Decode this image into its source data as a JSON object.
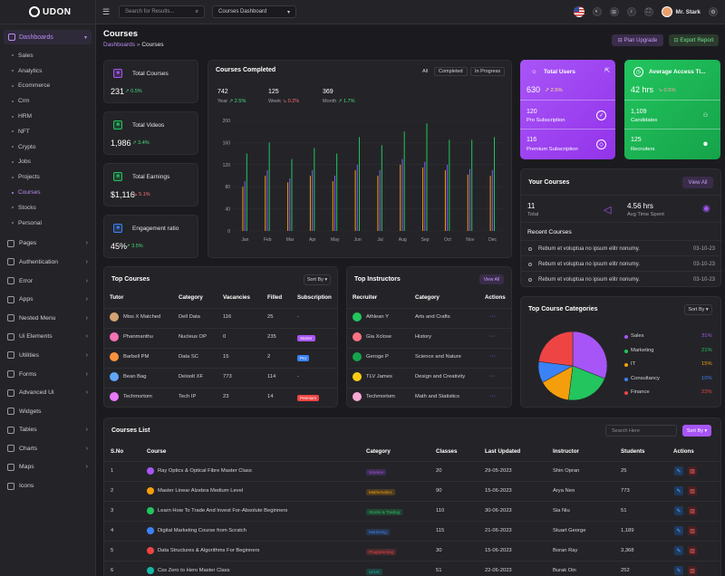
{
  "app": {
    "logo_text": "UDON"
  },
  "sidebar": {
    "dashboards_label": "Dashboards",
    "sub_items": [
      "Sales",
      "Analytics",
      "Ecommerce",
      "Crm",
      "HRM",
      "NFT",
      "Crypto",
      "Jobs",
      "Projects",
      "Courses",
      "Stocks",
      "Personal"
    ],
    "active_sub": "Courses",
    "items": [
      "Pages",
      "Authentication",
      "Error",
      "Apps",
      "Nested Menu",
      "Ui Elements",
      "Utilities",
      "Forms",
      "Advanced Ui",
      "Widgets",
      "Tables",
      "Charts",
      "Maps",
      "Icons"
    ]
  },
  "topbar": {
    "search_placeholder": "Search for Results...",
    "dashboard_select": "Courses Dashboard",
    "user_name": "Mr. Stark"
  },
  "page": {
    "title": "Courses",
    "crumb_root": "Dashboards",
    "crumb_sep": "»",
    "crumb_current": "Courses",
    "plan_upgrade": "Plan Upgrade",
    "export_report": "Export Report"
  },
  "stats": [
    {
      "label": "Total Courses",
      "value": "231",
      "change": "0.5%",
      "dir": "up",
      "color": "#a855f7",
      "icon": "book-icon"
    },
    {
      "label": "Total Videos",
      "value": "1,986",
      "change": "3.4%",
      "dir": "up",
      "color": "#22c55e",
      "icon": "video-icon"
    },
    {
      "label": "Total Earnings",
      "value": "$1,116",
      "change": "5.1%",
      "dir": "down",
      "color": "#22c55e",
      "icon": "dollar-icon"
    },
    {
      "label": "Engagement ratio",
      "value": "45%",
      "change": "3.5%",
      "dir": "up",
      "color": "#3b82f6",
      "icon": "diamond-icon"
    }
  ],
  "courses_completed": {
    "title": "Courses Completed",
    "tabs": [
      "All",
      "Completed",
      "In Progress"
    ],
    "stats": [
      {
        "value": "742",
        "period": "Year",
        "change": "2.5%",
        "dir": "up"
      },
      {
        "value": "125",
        "period": "Week",
        "change": "0.2%",
        "dir": "down"
      },
      {
        "value": "369",
        "period": "Month",
        "change": "1.7%",
        "dir": "up"
      }
    ]
  },
  "chart_data": {
    "type": "bar",
    "categories": [
      "Jan",
      "Feb",
      "Mar",
      "Apr",
      "May",
      "Jun",
      "Jul",
      "Aug",
      "Sep",
      "Oct",
      "Nov",
      "Dec"
    ],
    "yticks": [
      0,
      40,
      80,
      120,
      160,
      200
    ],
    "ylim": [
      0,
      200
    ],
    "series": [
      {
        "color": "#f59e0b",
        "values": [
          80,
          100,
          88,
          100,
          90,
          110,
          100,
          120,
          115,
          110,
          102,
          100
        ]
      },
      {
        "color": "#8b5cf6",
        "values": [
          90,
          110,
          95,
          110,
          100,
          120,
          110,
          130,
          125,
          120,
          112,
          110
        ]
      },
      {
        "color": "#22c55e",
        "values": [
          140,
          160,
          130,
          150,
          140,
          170,
          155,
          180,
          195,
          165,
          165,
          170
        ]
      }
    ]
  },
  "total_users": {
    "title": "Total Users",
    "value": "630",
    "change": "2.5%",
    "rows": [
      {
        "value": "120",
        "label": "Pro Subscription",
        "icon": "check-circle-icon"
      },
      {
        "value": "116",
        "label": "Premium Subscription",
        "icon": "diamond-icon"
      }
    ]
  },
  "access_time": {
    "title": "Average Access Ti...",
    "value": "42 hrs",
    "change": "0.5%",
    "rows": [
      {
        "value": "1,109",
        "label": "Candidates",
        "icon": "users-icon"
      },
      {
        "value": "125",
        "label": "Recruiters",
        "icon": "user-plus-icon"
      }
    ]
  },
  "your_courses": {
    "title": "Your Courses",
    "view_all": "View All",
    "total_value": "11",
    "total_label": "Total",
    "time_value": "4.56 hrs",
    "time_label": "Avg Time Spent",
    "recent_title": "Recent Courses",
    "recent": [
      {
        "text": "Rebum et voluptua no ipsum elitr nonumy.",
        "date": "03-10-23"
      },
      {
        "text": "Rebum et voluptua no ipsum elitr nonumy.",
        "date": "03-10-23"
      },
      {
        "text": "Rebum et voluptua no ipsum elitr nonumy.",
        "date": "03-10-23"
      }
    ]
  },
  "top_courses": {
    "title": "Top Courses",
    "sort": "Sort By",
    "headers": [
      "Tutor",
      "Category",
      "Vacancies",
      "Filled",
      "Subscription"
    ],
    "rows": [
      {
        "tutor": "Miss X Matched",
        "category": "Dell Data",
        "vacancies": "116",
        "filled": "25",
        "sub": "-",
        "sub_color": "",
        "av": "#d4a373"
      },
      {
        "tutor": "Phanmanthu",
        "category": "Nucleus OP",
        "vacancies": "0",
        "filled": "235",
        "sub": "Starter",
        "sub_color": "#a855f7",
        "av": "#f472b6"
      },
      {
        "tutor": "Barbell PM",
        "category": "Data SC",
        "vacancies": "15",
        "filled": "2",
        "sub": "Pro",
        "sub_color": "#3b82f6",
        "av": "#fb923c"
      },
      {
        "tutor": "Bean Bag",
        "category": "Deloolt XF",
        "vacancies": "773",
        "filled": "114",
        "sub": "-",
        "sub_color": "",
        "av": "#60a5fa"
      },
      {
        "tutor": "Techmortom",
        "category": "Tech IP",
        "vacancies": "23",
        "filled": "14",
        "sub": "Premium",
        "sub_color": "#ef4444",
        "av": "#e879f9"
      }
    ]
  },
  "top_instructors": {
    "title": "Top Instructors",
    "view_all": "View All",
    "headers": [
      "Recruiter",
      "Category",
      "Actions"
    ],
    "rows": [
      {
        "name": "Athlean Y",
        "category": "Arts and Crafts",
        "av": "#22c55e"
      },
      {
        "name": "Gia Xclose",
        "category": "History",
        "av": "#fb7185"
      },
      {
        "name": "Geroge P",
        "category": "Science and Nature",
        "av": "#16a34a"
      },
      {
        "name": "TLV James",
        "category": "Design and Creativity",
        "av": "#facc15"
      },
      {
        "name": "Techmortom",
        "category": "Math and Statistics",
        "av": "#f9a8d4"
      }
    ],
    "action_glyph": "···"
  },
  "categories": {
    "title": "Top Course Categories",
    "sort": "Sort By",
    "items": [
      {
        "name": "Sales",
        "pct": "31%",
        "value": 31,
        "color": "#a855f7"
      },
      {
        "name": "Marketing",
        "pct": "21%",
        "value": 21,
        "color": "#22c55e"
      },
      {
        "name": "IT",
        "pct": "15%",
        "value": 15,
        "color": "#f59e0b"
      },
      {
        "name": "Consultancy",
        "pct": "10%",
        "value": 10,
        "color": "#3b82f6"
      },
      {
        "name": "Finance",
        "pct": "23%",
        "value": 23,
        "color": "#ef4444"
      }
    ]
  },
  "courses_list": {
    "title": "Courses List",
    "search_placeholder": "Search Here",
    "sort": "Sort By",
    "headers": [
      "S.No",
      "Course",
      "Category",
      "Classes",
      "Last Updated",
      "Instructor",
      "Students",
      "Actions"
    ],
    "rows": [
      {
        "no": "1",
        "course": "Ray Optics & Optical Fibre Master Class",
        "category": "Science",
        "cat_color": "#a855f7",
        "classes": "20",
        "updated": "29-05-2023",
        "instructor": "Shin Opran",
        "students": "25"
      },
      {
        "no": "2",
        "course": "Master Linear Alzebra Medium Level",
        "category": "Mathematics",
        "cat_color": "#f59e0b",
        "classes": "90",
        "updated": "15-06-2023",
        "instructor": "Arya Neo",
        "students": "773"
      },
      {
        "no": "3",
        "course": "Learn How To Trade And Invest For-Absolute Beginners",
        "category": "Stocks & Trading",
        "cat_color": "#22c55e",
        "classes": "110",
        "updated": "30-06-2023",
        "instructor": "Sia Niu",
        "students": "51"
      },
      {
        "no": "4",
        "course": "Digital Marketing Course from Scratch",
        "category": "Marketing",
        "cat_color": "#3b82f6",
        "classes": "115",
        "updated": "21-06-2023",
        "instructor": "Stuart George",
        "students": "1,189"
      },
      {
        "no": "5",
        "course": "Data Structures & Algorithms For Beginners",
        "category": "Programming",
        "cat_color": "#ef4444",
        "classes": "30",
        "updated": "15-06-2023",
        "instructor": "Boran Ray",
        "students": "3,368"
      },
      {
        "no": "6",
        "course": "Css Zero to Hero Master Class",
        "category": "UI/UX",
        "cat_color": "#14b8a6",
        "classes": "51",
        "updated": "22-06-2023",
        "instructor": "Burak Oin",
        "students": "252"
      }
    ]
  }
}
